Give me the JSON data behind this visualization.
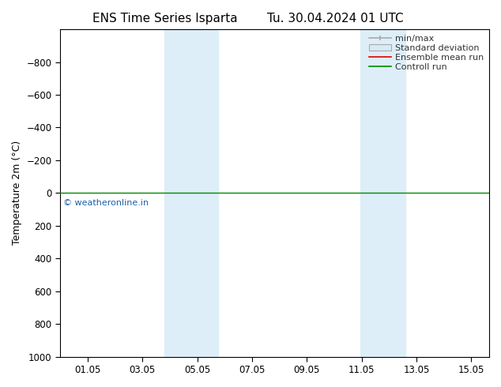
{
  "title_left": "ENS Time Series Isparta",
  "title_right": "Tu. 30.04.2024 01 UTC",
  "ylabel": "Temperature 2m (°C)",
  "ylim": [
    -1000,
    1000
  ],
  "yticks": [
    -800,
    -600,
    -400,
    -200,
    0,
    200,
    400,
    600,
    800,
    1000
  ],
  "xlim": [
    0.0,
    15.65
  ],
  "xtick_positions": [
    1,
    3,
    5,
    7,
    9,
    11,
    13,
    15
  ],
  "xtick_labels": [
    "01.05",
    "03.05",
    "05.05",
    "07.05",
    "09.05",
    "11.05",
    "13.05",
    "15.05"
  ],
  "shaded_bands": [
    {
      "xmin": 3.8,
      "xmax": 4.7
    },
    {
      "xmin": 4.7,
      "xmax": 5.75
    },
    {
      "xmin": 10.95,
      "xmax": 12.0
    },
    {
      "xmin": 12.0,
      "xmax": 12.6
    }
  ],
  "shade_color": "#ddeef8",
  "green_color": "#008800",
  "red_color": "#dd0000",
  "gray_color": "#aaaaaa",
  "watermark_text": "© weatheronline.in",
  "watermark_color": "#1a5fa8",
  "bg_color": "#ffffff",
  "legend_labels": [
    "min/max",
    "Standard deviation",
    "Ensemble mean run",
    "Controll run"
  ],
  "title_fontsize": 11,
  "ylabel_fontsize": 9,
  "tick_fontsize": 8.5,
  "legend_fontsize": 8,
  "invert_yaxis": true,
  "top_ytick": -800,
  "bottom_ytick": 1000
}
